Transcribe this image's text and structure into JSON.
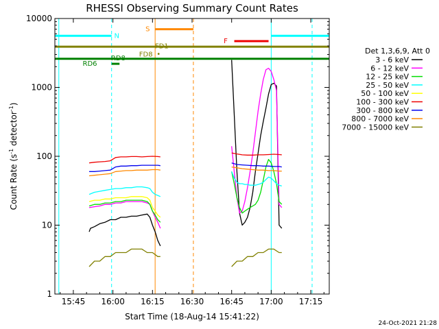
{
  "chart_data": {
    "type": "line",
    "title": "RHESSI Observing Summary Count Rates",
    "xlabel": "Start Time (18-Aug-14 15:41:22)",
    "ylabel_main": "Count Rate (s",
    "ylabel_sup1": "-1",
    "ylabel_mid": " detector",
    "ylabel_sup2": "-1",
    "ylabel_end": ")",
    "x_range_minutes": [
      15.63,
      17.33
    ],
    "y_scale": "log",
    "ylim": [
      1,
      10000
    ],
    "x_ticks": [
      "15:45",
      "16:00",
      "16:15",
      "16:30",
      "16:45",
      "17:00",
      "17:15"
    ],
    "x_tick_minutes": [
      945,
      960,
      975,
      990,
      1005,
      1020,
      1035
    ],
    "xlim_minutes": [
      938,
      1042
    ],
    "y_ticks": [
      "1",
      "10",
      "100",
      "1000",
      "10000"
    ],
    "y_tick_values": [
      1,
      10,
      100,
      1000,
      10000
    ],
    "legend_title": "Det 1,3,6,9, Att 0",
    "series": [
      {
        "name": "3 - 6 keV",
        "color": "#000000",
        "x": [
          951,
          951.5,
          953,
          955,
          957,
          959,
          961,
          963,
          965,
          967,
          969,
          971,
          973,
          974,
          975,
          976,
          977,
          978,
          1005,
          1006,
          1007,
          1008,
          1009,
          1010,
          1011,
          1012,
          1013,
          1014,
          1015,
          1016,
          1017,
          1018,
          1019,
          1020,
          1021,
          1022,
          1023,
          1024
        ],
        "y": [
          8,
          9,
          9.5,
          10.5,
          11,
          12,
          12,
          13,
          13,
          13.5,
          13.5,
          14,
          14.5,
          13,
          10,
          8,
          6,
          5,
          2500,
          400,
          60,
          15,
          10,
          11,
          13,
          18,
          30,
          60,
          110,
          200,
          320,
          500,
          800,
          1100,
          1150,
          1050,
          10,
          9
        ]
      },
      {
        "name": "6 - 12 keV",
        "color": "#ff00ff",
        "x": [
          951,
          953,
          955,
          957,
          959,
          961,
          963,
          965,
          967,
          969,
          971,
          973,
          974,
          975,
          976,
          977,
          978,
          1005,
          1006,
          1007,
          1008,
          1009,
          1010,
          1011,
          1012,
          1013,
          1014,
          1015,
          1016,
          1017,
          1018,
          1019,
          1020,
          1021,
          1022,
          1023,
          1024
        ],
        "y": [
          18,
          18.5,
          19,
          20,
          20,
          21,
          21,
          22,
          22,
          22,
          22,
          21,
          20,
          16,
          13,
          11,
          9,
          140,
          60,
          25,
          15,
          16,
          22,
          35,
          60,
          110,
          220,
          450,
          800,
          1300,
          1800,
          1900,
          1700,
          1300,
          900,
          20,
          18
        ]
      },
      {
        "name": "12 - 25 keV",
        "color": "#00dd00",
        "x": [
          951,
          953,
          955,
          957,
          959,
          961,
          963,
          965,
          967,
          969,
          971,
          973,
          974,
          975,
          976,
          977,
          978,
          1005,
          1006,
          1007,
          1008,
          1009,
          1010,
          1011,
          1012,
          1013,
          1014,
          1015,
          1016,
          1017,
          1018,
          1019,
          1020,
          1021,
          1022,
          1023,
          1024
        ],
        "y": [
          19,
          20,
          20,
          21,
          21,
          22,
          22,
          23,
          23,
          23,
          23,
          22,
          20,
          16,
          14,
          12,
          11,
          60,
          40,
          25,
          18,
          15,
          16,
          17,
          18,
          19,
          20,
          23,
          30,
          45,
          70,
          90,
          80,
          60,
          40,
          22,
          20
        ]
      },
      {
        "name": "25 - 50 keV",
        "color": "#00ffff",
        "x": [
          951,
          953,
          955,
          957,
          959,
          961,
          963,
          965,
          967,
          969,
          971,
          973,
          974,
          975,
          976,
          977,
          978,
          1005,
          1006,
          1007,
          1008,
          1009,
          1010,
          1011,
          1012,
          1013,
          1014,
          1015,
          1016,
          1017,
          1018,
          1019,
          1020,
          1021,
          1022,
          1023,
          1024
        ],
        "y": [
          28,
          30,
          31,
          32,
          33,
          34,
          34,
          35,
          35,
          36,
          36,
          35,
          34,
          30,
          28,
          27,
          26,
          60,
          48,
          42,
          40,
          40,
          39,
          39,
          38,
          38,
          38,
          39,
          40,
          42,
          46,
          50,
          48,
          44,
          40,
          38,
          37
        ]
      },
      {
        "name": "50 - 100 keV",
        "color": "#ffff00",
        "x": [
          951,
          953,
          955,
          957,
          959,
          961,
          963,
          965,
          967,
          969,
          971,
          973,
          974,
          975,
          976,
          977,
          978
        ],
        "y": [
          22,
          23,
          23,
          24,
          24,
          25,
          25,
          25,
          26,
          26,
          26,
          25,
          23,
          18,
          16,
          14,
          13
        ]
      },
      {
        "name": "100 - 300 keV",
        "color": "#ee0000",
        "x": [
          951,
          953,
          955,
          957,
          959,
          961,
          963,
          965,
          967,
          969,
          971,
          973,
          975,
          977,
          978,
          1005,
          1007,
          1009,
          1011,
          1013,
          1015,
          1017,
          1019,
          1021,
          1023,
          1024
        ],
        "y": [
          80,
          82,
          83,
          84,
          86,
          96,
          98,
          98,
          99,
          99,
          98,
          99,
          100,
          99,
          98,
          112,
          108,
          105,
          104,
          104,
          105,
          105,
          106,
          107,
          106,
          105
        ]
      },
      {
        "name": "300 - 800 keV",
        "color": "#0000ee",
        "x": [
          951,
          953,
          955,
          957,
          959,
          961,
          963,
          965,
          967,
          969,
          971,
          973,
          975,
          977,
          978,
          1005,
          1007,
          1009,
          1011,
          1013,
          1015,
          1017,
          1019,
          1021,
          1023,
          1024
        ],
        "y": [
          60,
          60,
          61,
          62,
          63,
          70,
          72,
          72,
          73,
          73,
          74,
          74,
          74,
          74,
          73,
          80,
          76,
          75,
          74,
          73,
          73,
          72,
          72,
          71,
          71,
          70
        ]
      },
      {
        "name": "800 - 7000 keV",
        "color": "#ff8800",
        "x": [
          951,
          953,
          955,
          957,
          959,
          961,
          963,
          965,
          967,
          969,
          971,
          973,
          975,
          977,
          978,
          1005,
          1007,
          1009,
          1011,
          1013,
          1015,
          1017,
          1019,
          1021,
          1023,
          1024
        ],
        "y": [
          52,
          53,
          54,
          55,
          56,
          60,
          61,
          62,
          62,
          63,
          63,
          63,
          64,
          64,
          63,
          70,
          68,
          66,
          65,
          64,
          63,
          63,
          62,
          62,
          61,
          61
        ]
      },
      {
        "name": "7000 - 15000 keV",
        "color": "#808000",
        "x": [
          951,
          953,
          955,
          957,
          959,
          961,
          963,
          965,
          967,
          969,
          971,
          973,
          975,
          977,
          978,
          1005,
          1007,
          1009,
          1011,
          1013,
          1015,
          1017,
          1019,
          1021,
          1023,
          1024
        ],
        "y": [
          2.5,
          3,
          3,
          3.5,
          3.5,
          4,
          4,
          4,
          4.5,
          4.5,
          4.5,
          4,
          4,
          3.5,
          3.5,
          2.5,
          3,
          3,
          3.5,
          3.5,
          4,
          4,
          4.5,
          4.5,
          4,
          4
        ]
      }
    ],
    "vlines": [
      {
        "minute": 939.5,
        "color": "#00ffff",
        "style": "solid"
      },
      {
        "minute": 959.5,
        "color": "#00ffff",
        "style": "dash"
      },
      {
        "minute": 976.0,
        "color": "#ff8800",
        "style": "solid"
      },
      {
        "minute": 990.5,
        "color": "#ff8800",
        "style": "dash"
      },
      {
        "minute": 1020.0,
        "color": "#00ffff",
        "style": "solid"
      },
      {
        "minute": 1035.5,
        "color": "#00ffff",
        "style": "dash"
      }
    ],
    "bars": [
      {
        "label": "N",
        "color": "#00ffff",
        "x0": 938,
        "x1": 959.5,
        "level": 5600,
        "label_minute": 960.5,
        "label_side": "right"
      },
      {
        "label": "N",
        "color": "#00ffff",
        "x0": 1020,
        "x1": 1042,
        "level": 5600,
        "label_minute": null,
        "label_side": "none"
      },
      {
        "label": "S",
        "color": "#ff8800",
        "x0": 976,
        "x1": 990.5,
        "level": 7000,
        "label_minute": 974,
        "label_side": "left"
      },
      {
        "label": "F",
        "color": "#ee0000",
        "x0": 1006,
        "x1": 1019,
        "level": 4700,
        "label_minute": 1003.5,
        "label_side": "left"
      },
      {
        "label": "",
        "color": "#808000",
        "x0": 938,
        "x1": 1042,
        "level": 3900,
        "label_minute": null,
        "label_side": "none"
      },
      {
        "label": "",
        "color": "#008000",
        "x0": 938,
        "x1": 1042,
        "level": 2600,
        "label_minute": null,
        "label_side": "none"
      },
      {
        "label": "RD6",
        "color": "#008000",
        "x0": 959.5,
        "x1": 962.5,
        "level": 2200,
        "label_minute": 954,
        "label_side": "left"
      }
    ],
    "annotations": [
      {
        "text": "FD1",
        "color": "#808000",
        "minute": 978.5,
        "value": 3950
      },
      {
        "text": "FD8",
        "color": "#808000",
        "minute": 972.5,
        "value": 3000
      },
      {
        "text": "RD8",
        "color": "#008000",
        "minute": 962,
        "value": 2650
      },
      {
        "text": "•",
        "color": "#808000",
        "minute": 977.3,
        "value": 3050
      }
    ],
    "timestamp": "24-Oct-2021 21:28"
  }
}
